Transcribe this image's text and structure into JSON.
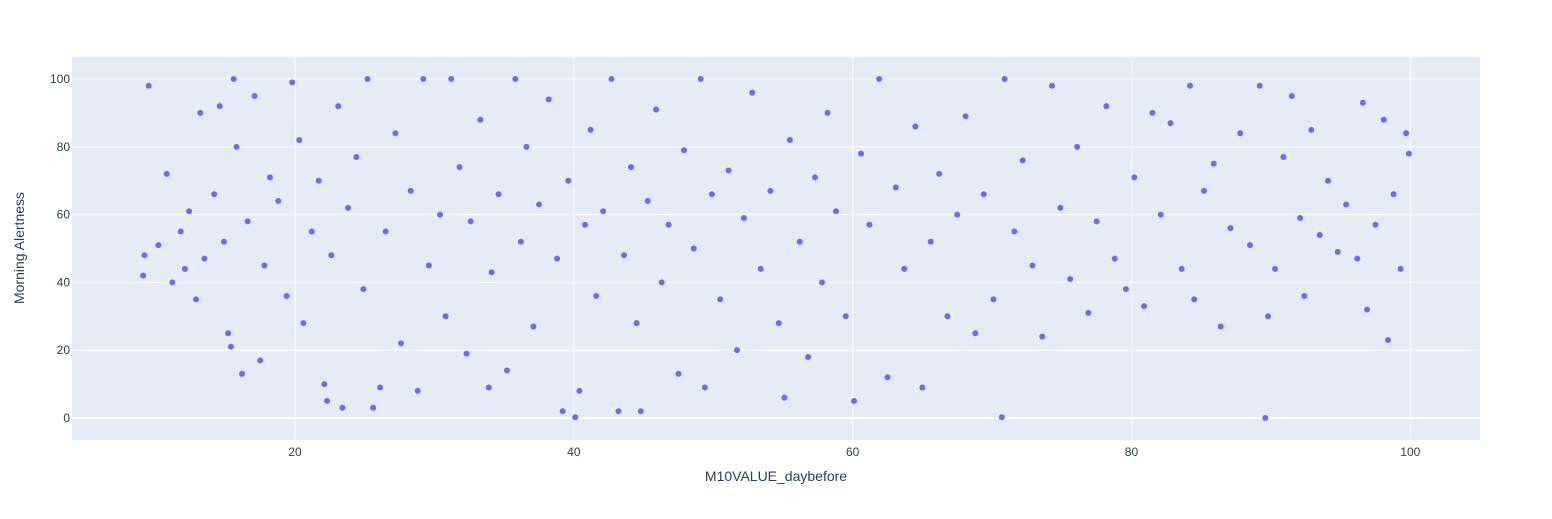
{
  "chart_data": {
    "type": "scatter",
    "xlabel": "M10VALUE_daybefore",
    "ylabel": "Morning Alertness",
    "xlim": [
      4,
      105
    ],
    "ylim": [
      -6.5,
      106.5
    ],
    "xticks": [
      20,
      40,
      60,
      80,
      100
    ],
    "yticks": [
      0,
      20,
      40,
      60,
      80,
      100
    ],
    "grid": true,
    "legend": "none",
    "colors": {
      "marker": "#636efa",
      "plot_bg": "#e5ecf6",
      "grid": "#ffffff",
      "text": "#2a3f5f"
    },
    "points": [
      [
        9.5,
        98
      ],
      [
        9.2,
        48
      ],
      [
        9.1,
        42
      ],
      [
        10.2,
        51
      ],
      [
        10.8,
        72
      ],
      [
        11.2,
        40
      ],
      [
        11.8,
        55
      ],
      [
        12.1,
        44
      ],
      [
        12.4,
        61
      ],
      [
        12.9,
        35
      ],
      [
        13.2,
        90
      ],
      [
        13.5,
        47
      ],
      [
        14.2,
        66
      ],
      [
        14.6,
        92
      ],
      [
        14.9,
        52
      ],
      [
        15.2,
        25
      ],
      [
        15.4,
        21
      ],
      [
        15.6,
        100
      ],
      [
        15.8,
        80
      ],
      [
        16.2,
        13
      ],
      [
        16.6,
        58
      ],
      [
        17.1,
        95
      ],
      [
        17.5,
        17
      ],
      [
        17.8,
        45
      ],
      [
        18.2,
        71
      ],
      [
        18.8,
        64
      ],
      [
        19.4,
        36
      ],
      [
        19.8,
        99
      ],
      [
        20.3,
        82
      ],
      [
        20.6,
        28
      ],
      [
        21.2,
        55
      ],
      [
        21.7,
        70
      ],
      [
        22.1,
        10
      ],
      [
        22.3,
        5
      ],
      [
        22.6,
        48
      ],
      [
        23.1,
        92
      ],
      [
        23.4,
        3
      ],
      [
        23.8,
        62
      ],
      [
        24.4,
        77
      ],
      [
        24.9,
        38
      ],
      [
        25.2,
        100
      ],
      [
        25.6,
        3
      ],
      [
        26.1,
        9
      ],
      [
        26.5,
        55
      ],
      [
        27.2,
        84
      ],
      [
        27.6,
        22
      ],
      [
        28.3,
        67
      ],
      [
        28.8,
        8
      ],
      [
        29.2,
        100
      ],
      [
        29.6,
        45
      ],
      [
        30.4,
        60
      ],
      [
        30.8,
        30
      ],
      [
        31.2,
        100
      ],
      [
        31.8,
        74
      ],
      [
        32.3,
        19
      ],
      [
        32.6,
        58
      ],
      [
        33.3,
        88
      ],
      [
        33.9,
        9
      ],
      [
        34.1,
        43
      ],
      [
        34.6,
        66
      ],
      [
        35.2,
        14
      ],
      [
        35.8,
        100
      ],
      [
        36.2,
        52
      ],
      [
        36.6,
        80
      ],
      [
        37.1,
        27
      ],
      [
        37.5,
        63
      ],
      [
        38.2,
        94
      ],
      [
        38.8,
        47
      ],
      [
        39.2,
        2
      ],
      [
        39.6,
        70
      ],
      [
        40.1,
        0.2
      ],
      [
        40.4,
        8
      ],
      [
        40.8,
        57
      ],
      [
        41.2,
        85
      ],
      [
        41.6,
        36
      ],
      [
        42.1,
        61
      ],
      [
        42.7,
        100
      ],
      [
        43.2,
        2
      ],
      [
        43.6,
        48
      ],
      [
        44.1,
        74
      ],
      [
        44.5,
        28
      ],
      [
        44.8,
        2
      ],
      [
        45.3,
        64
      ],
      [
        45.9,
        91
      ],
      [
        46.3,
        40
      ],
      [
        46.8,
        57
      ],
      [
        47.5,
        13
      ],
      [
        47.9,
        79
      ],
      [
        48.6,
        50
      ],
      [
        49.1,
        100
      ],
      [
        49.4,
        9
      ],
      [
        49.9,
        66
      ],
      [
        50.5,
        35
      ],
      [
        51.1,
        73
      ],
      [
        51.7,
        20
      ],
      [
        52.2,
        59
      ],
      [
        52.8,
        96
      ],
      [
        53.4,
        44
      ],
      [
        54.1,
        67
      ],
      [
        54.7,
        28
      ],
      [
        55.1,
        6
      ],
      [
        55.5,
        82
      ],
      [
        56.2,
        52
      ],
      [
        56.8,
        18
      ],
      [
        57.3,
        71
      ],
      [
        57.8,
        40
      ],
      [
        58.2,
        90
      ],
      [
        58.8,
        61
      ],
      [
        59.5,
        30
      ],
      [
        60.1,
        5
      ],
      [
        60.6,
        78
      ],
      [
        61.2,
        57
      ],
      [
        61.9,
        100
      ],
      [
        62.5,
        12
      ],
      [
        63.1,
        68
      ],
      [
        63.7,
        44
      ],
      [
        64.5,
        86
      ],
      [
        65.0,
        9
      ],
      [
        65.6,
        52
      ],
      [
        66.2,
        72
      ],
      [
        66.8,
        30
      ],
      [
        67.5,
        60
      ],
      [
        68.1,
        89
      ],
      [
        68.8,
        25
      ],
      [
        69.4,
        66
      ],
      [
        70.1,
        35
      ],
      [
        70.7,
        0.2
      ],
      [
        70.9,
        100
      ],
      [
        71.6,
        55
      ],
      [
        72.2,
        76
      ],
      [
        72.9,
        45
      ],
      [
        73.6,
        24
      ],
      [
        74.3,
        98
      ],
      [
        74.9,
        62
      ],
      [
        75.6,
        41
      ],
      [
        76.1,
        80
      ],
      [
        76.9,
        31
      ],
      [
        77.5,
        58
      ],
      [
        78.2,
        92
      ],
      [
        78.8,
        47
      ],
      [
        79.6,
        38
      ],
      [
        80.2,
        71
      ],
      [
        80.9,
        33
      ],
      [
        81.5,
        90
      ],
      [
        82.1,
        60
      ],
      [
        82.8,
        87
      ],
      [
        83.6,
        44
      ],
      [
        84.2,
        98
      ],
      [
        84.5,
        35
      ],
      [
        85.2,
        67
      ],
      [
        85.9,
        75
      ],
      [
        86.4,
        27
      ],
      [
        87.1,
        56
      ],
      [
        87.8,
        84
      ],
      [
        88.5,
        51
      ],
      [
        89.2,
        98
      ],
      [
        89.6,
        0
      ],
      [
        89.8,
        30
      ],
      [
        90.3,
        44
      ],
      [
        90.9,
        77
      ],
      [
        91.5,
        95
      ],
      [
        92.1,
        59
      ],
      [
        92.4,
        36
      ],
      [
        92.9,
        85
      ],
      [
        93.5,
        54
      ],
      [
        94.1,
        70
      ],
      [
        94.8,
        49
      ],
      [
        95.4,
        63
      ],
      [
        96.2,
        47
      ],
      [
        96.6,
        93
      ],
      [
        96.9,
        32
      ],
      [
        97.5,
        57
      ],
      [
        98.1,
        88
      ],
      [
        98.4,
        23
      ],
      [
        98.8,
        66
      ],
      [
        99.3,
        44
      ],
      [
        99.7,
        84
      ],
      [
        99.9,
        78
      ]
    ]
  }
}
